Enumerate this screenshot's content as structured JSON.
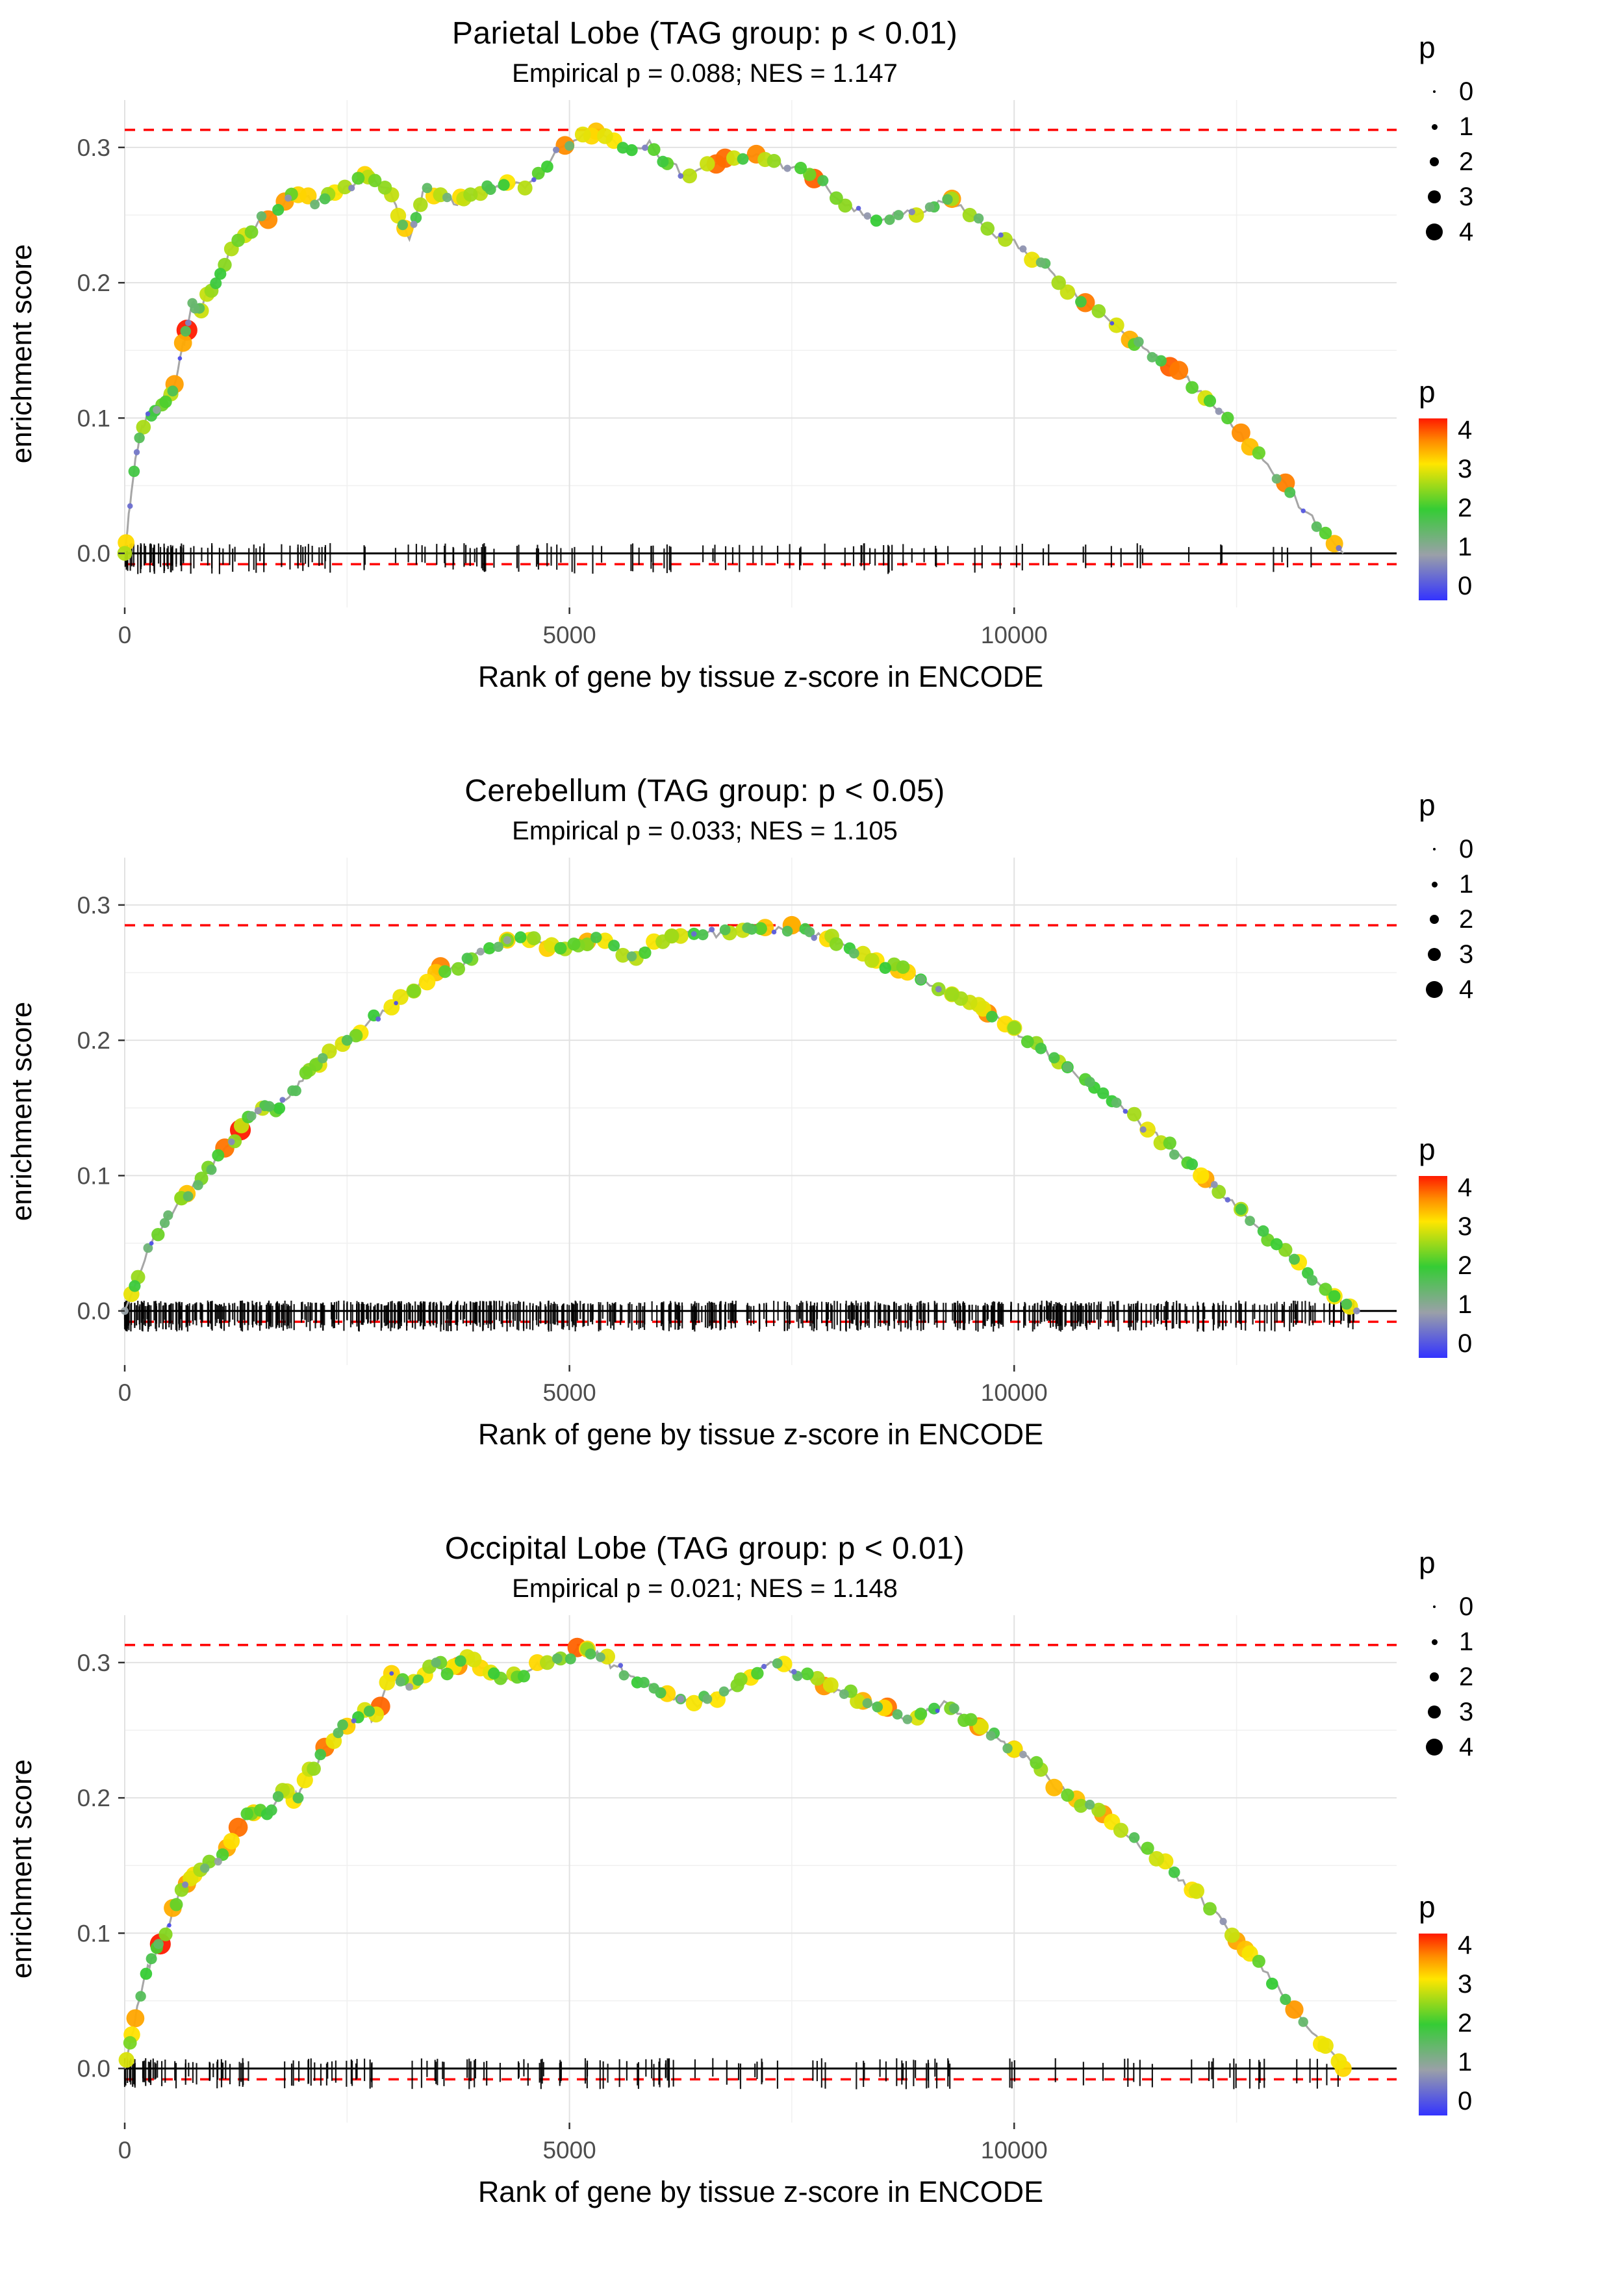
{
  "axes": {
    "y_label": "enrichment score",
    "x_label": "Rank of gene by tissue z-score in ENCODE",
    "y_ticks": [
      "0.0",
      "0.1",
      "0.2",
      "0.3"
    ],
    "y_tick_values": [
      0,
      0.1,
      0.2,
      0.3
    ],
    "x_ticks": [
      "0",
      "5000",
      "10000"
    ],
    "x_tick_values": [
      0,
      5000,
      10000
    ]
  },
  "legend": {
    "size": {
      "title": "p",
      "items": [
        "0",
        "1",
        "2",
        "3",
        "4"
      ]
    },
    "color": {
      "title": "p",
      "labels": [
        "4",
        "3",
        "2",
        "1",
        "0"
      ],
      "stops": [
        [
          0,
          "#3333ff"
        ],
        [
          1,
          "#9aa0a8"
        ],
        [
          2,
          "#35cc35"
        ],
        [
          3,
          "#ffe600"
        ],
        [
          3.5,
          "#ff8c00"
        ],
        [
          4,
          "#ff1a00"
        ]
      ]
    }
  },
  "colors": {
    "threshold_line": "#ff0000",
    "curve_line": "#a6a6a6",
    "zero_line": "#000000",
    "rug": "#000000",
    "grid_major": "#e2e2e2",
    "grid_minor": "#f0f0f0",
    "axis_text": "#4d4d4d",
    "axis_title": "#000000",
    "tick_mark": "#333333"
  },
  "chart_data": [
    {
      "type": "line",
      "tissue": "Parietal Lobe",
      "title": "Parietal Lobe (TAG group: p < 0.01)",
      "subtitle": "Empirical p = 0.088; NES = 1.147",
      "tag_group_p": "p < 0.01",
      "empirical_p": 0.088,
      "nes": 1.147,
      "dashed_max_es": 0.313,
      "dashed_min_es": -0.008,
      "x_domain": [
        0,
        14300
      ],
      "y_domain": [
        -0.04,
        0.335
      ],
      "curve": {
        "x": [
          0,
          60,
          120,
          180,
          240,
          320,
          400,
          480,
          560,
          640,
          700,
          760,
          820,
          900,
          1000,
          1100,
          1200,
          1350,
          1500,
          1650,
          1800,
          1950,
          2100,
          2250,
          2400,
          2550,
          2700,
          2850,
          3000,
          3100,
          3200,
          3300,
          3400,
          3550,
          3700,
          3850,
          4000,
          4150,
          4300,
          4500,
          4700,
          4900,
          5100,
          5300,
          5500,
          5700,
          5900,
          6100,
          6300,
          6500,
          6700,
          6900,
          7100,
          7300,
          7500,
          7700,
          7900,
          8100,
          8300,
          8500,
          8700,
          8900,
          9100,
          9300,
          9500,
          9700,
          9900,
          10100,
          10300,
          10500,
          10700,
          10900,
          11100,
          11300,
          11500,
          11700,
          11900,
          12100,
          12300,
          12500,
          12700,
          12900,
          13100,
          13300,
          13500,
          13700
        ],
        "y": [
          0,
          0.035,
          0.07,
          0.09,
          0.1,
          0.105,
          0.11,
          0.115,
          0.125,
          0.15,
          0.165,
          0.185,
          0.175,
          0.19,
          0.2,
          0.21,
          0.225,
          0.235,
          0.245,
          0.25,
          0.26,
          0.265,
          0.26,
          0.262,
          0.265,
          0.27,
          0.28,
          0.272,
          0.265,
          0.245,
          0.232,
          0.258,
          0.27,
          0.265,
          0.258,
          0.262,
          0.266,
          0.27,
          0.274,
          0.27,
          0.28,
          0.3,
          0.306,
          0.312,
          0.305,
          0.298,
          0.305,
          0.288,
          0.28,
          0.285,
          0.29,
          0.29,
          0.295,
          0.29,
          0.285,
          0.28,
          0.27,
          0.257,
          0.25,
          0.246,
          0.25,
          0.25,
          0.256,
          0.262,
          0.25,
          0.24,
          0.232,
          0.225,
          0.215,
          0.2,
          0.19,
          0.18,
          0.17,
          0.158,
          0.15,
          0.14,
          0.13,
          0.12,
          0.105,
          0.09,
          0.075,
          0.06,
          0.045,
          0.03,
          0.015,
          0.0
        ]
      },
      "highlights": [
        {
          "x": 560,
          "p": 3.4
        },
        {
          "x": 700,
          "p": 4
        },
        {
          "x": 1800,
          "p": 3.4
        },
        {
          "x": 2700,
          "p": 3.1
        },
        {
          "x": 4950,
          "p": 3.5
        },
        {
          "x": 5300,
          "p": 3.2
        },
        {
          "x": 9300,
          "p": 3.4
        },
        {
          "x": 11300,
          "p": 3.3
        }
      ],
      "rug": {
        "count": 170,
        "seed": 101,
        "left_bias": 0.5
      },
      "n_points": 150,
      "seed": 7
    },
    {
      "type": "line",
      "tissue": "Cerebellum",
      "title": "Cerebellum (TAG group: p < 0.05)",
      "subtitle": "Empirical p = 0.033; NES = 1.105",
      "tag_group_p": "p < 0.05",
      "empirical_p": 0.033,
      "nes": 1.105,
      "dashed_max_es": 0.285,
      "dashed_min_es": -0.008,
      "x_domain": [
        0,
        14300
      ],
      "y_domain": [
        -0.04,
        0.335
      ],
      "curve": {
        "x": [
          0,
          150,
          300,
          450,
          600,
          750,
          900,
          1050,
          1200,
          1350,
          1500,
          1600,
          1700,
          1850,
          2000,
          2150,
          2300,
          2500,
          2700,
          2900,
          3100,
          3300,
          3500,
          3700,
          3900,
          4100,
          4300,
          4500,
          4700,
          4900,
          5100,
          5300,
          5500,
          5700,
          5900,
          6100,
          6300,
          6500,
          6700,
          6900,
          7100,
          7300,
          7500,
          7700,
          7900,
          8100,
          8300,
          8500,
          8700,
          8900,
          9100,
          9300,
          9500,
          9700,
          9900,
          10100,
          10300,
          10500,
          10700,
          10900,
          11100,
          11300,
          11500,
          11700,
          11900,
          12100,
          12300,
          12500,
          12700,
          12900,
          13100,
          13300,
          13500,
          13700,
          13850
        ],
        "y": [
          0,
          0.025,
          0.05,
          0.065,
          0.08,
          0.09,
          0.1,
          0.115,
          0.125,
          0.138,
          0.148,
          0.154,
          0.148,
          0.158,
          0.17,
          0.182,
          0.192,
          0.2,
          0.21,
          0.222,
          0.232,
          0.24,
          0.25,
          0.255,
          0.26,
          0.268,
          0.274,
          0.278,
          0.272,
          0.268,
          0.27,
          0.276,
          0.27,
          0.262,
          0.27,
          0.276,
          0.28,
          0.278,
          0.28,
          0.28,
          0.282,
          0.28,
          0.285,
          0.28,
          0.275,
          0.27,
          0.264,
          0.258,
          0.252,
          0.247,
          0.24,
          0.234,
          0.228,
          0.22,
          0.212,
          0.202,
          0.194,
          0.184,
          0.174,
          0.165,
          0.155,
          0.145,
          0.134,
          0.124,
          0.112,
          0.1,
          0.088,
          0.076,
          0.064,
          0.052,
          0.04,
          0.028,
          0.016,
          0.006,
          0.0
        ]
      },
      "highlights": [
        {
          "x": 700,
          "p": 3.2
        },
        {
          "x": 1300,
          "p": 4
        },
        {
          "x": 4300,
          "p": 3.1
        },
        {
          "x": 5200,
          "p": 3.3
        },
        {
          "x": 7500,
          "p": 3.3
        },
        {
          "x": 8700,
          "p": 3.2
        },
        {
          "x": 9700,
          "p": 3.5
        }
      ],
      "rug": {
        "count": 760,
        "seed": 202,
        "left_bias": 0.15
      },
      "n_points": 170,
      "seed": 21
    },
    {
      "type": "line",
      "tissue": "Occipital Lobe",
      "title": "Occipital Lobe (TAG group: p < 0.01)",
      "subtitle": "Empirical p = 0.021; NES = 1.148",
      "tag_group_p": "p < 0.01",
      "empirical_p": 0.021,
      "nes": 1.148,
      "dashed_max_es": 0.313,
      "dashed_min_es": -0.008,
      "x_domain": [
        0,
        14300
      ],
      "y_domain": [
        -0.04,
        0.335
      ],
      "curve": {
        "x": [
          0,
          80,
          160,
          240,
          320,
          400,
          480,
          560,
          640,
          720,
          800,
          900,
          1000,
          1100,
          1200,
          1300,
          1400,
          1500,
          1600,
          1700,
          1800,
          1900,
          2000,
          2100,
          2200,
          2300,
          2400,
          2500,
          2600,
          2700,
          2800,
          2900,
          3000,
          3100,
          3200,
          3300,
          3400,
          3500,
          3600,
          3700,
          3800,
          3900,
          4000,
          4150,
          4300,
          4450,
          4600,
          4750,
          4900,
          5050,
          5200,
          5350,
          5500,
          5650,
          5800,
          5950,
          6100,
          6250,
          6400,
          6550,
          6700,
          6850,
          7000,
          7150,
          7300,
          7450,
          7600,
          7750,
          7900,
          8050,
          8200,
          8350,
          8500,
          8650,
          8800,
          8950,
          9100,
          9250,
          9400,
          9550,
          9700,
          9850,
          10000,
          10200,
          10400,
          10600,
          10800,
          11000,
          11200,
          11400,
          11600,
          11800,
          12000,
          12200,
          12400,
          12600,
          12800,
          13000,
          13200,
          13400,
          13600,
          13700
        ],
        "y": [
          0,
          0.025,
          0.05,
          0.07,
          0.082,
          0.092,
          0.105,
          0.12,
          0.132,
          0.138,
          0.143,
          0.148,
          0.153,
          0.158,
          0.168,
          0.178,
          0.188,
          0.193,
          0.188,
          0.197,
          0.205,
          0.198,
          0.208,
          0.222,
          0.232,
          0.238,
          0.248,
          0.253,
          0.258,
          0.265,
          0.258,
          0.275,
          0.292,
          0.286,
          0.282,
          0.287,
          0.295,
          0.3,
          0.293,
          0.297,
          0.303,
          0.3,
          0.296,
          0.292,
          0.288,
          0.292,
          0.296,
          0.3,
          0.303,
          0.307,
          0.31,
          0.304,
          0.298,
          0.292,
          0.286,
          0.281,
          0.277,
          0.273,
          0.27,
          0.273,
          0.277,
          0.281,
          0.29,
          0.296,
          0.3,
          0.296,
          0.291,
          0.287,
          0.283,
          0.279,
          0.275,
          0.27,
          0.266,
          0.262,
          0.258,
          0.262,
          0.266,
          0.27,
          0.262,
          0.255,
          0.248,
          0.242,
          0.236,
          0.226,
          0.213,
          0.202,
          0.196,
          0.188,
          0.176,
          0.165,
          0.155,
          0.145,
          0.132,
          0.118,
          0.103,
          0.088,
          0.072,
          0.056,
          0.04,
          0.024,
          0.01,
          0.0
        ]
      },
      "highlights": [
        {
          "x": 400,
          "p": 4
        },
        {
          "x": 700,
          "p": 3.4
        },
        {
          "x": 3000,
          "p": 3.1
        },
        {
          "x": 5200,
          "p": 3.1
        },
        {
          "x": 8300,
          "p": 3.3
        },
        {
          "x": 9600,
          "p": 3.5
        },
        {
          "x": 10000,
          "p": 3.2
        },
        {
          "x": 10700,
          "p": 3.2
        },
        {
          "x": 11000,
          "p": 3.4
        },
        {
          "x": 12600,
          "p": 3.2
        }
      ],
      "rug": {
        "count": 180,
        "seed": 303,
        "left_bias": 0.45
      },
      "n_points": 165,
      "seed": 33
    }
  ]
}
